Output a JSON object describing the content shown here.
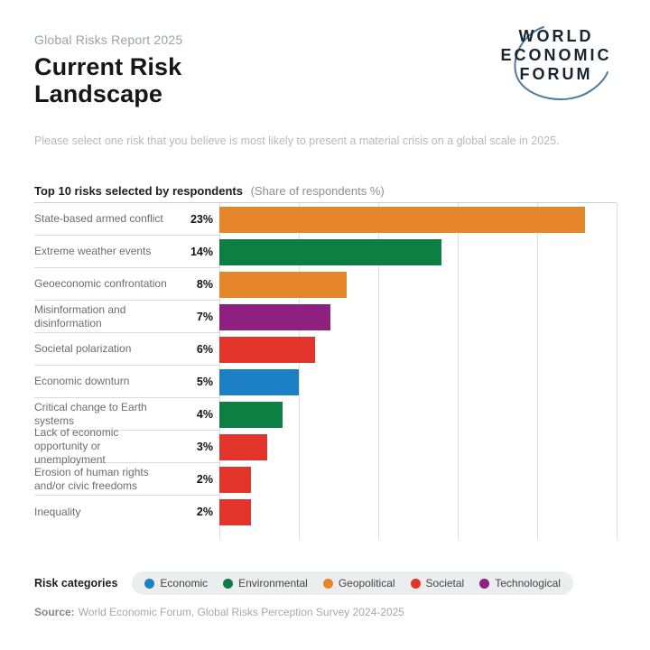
{
  "header": {
    "eyebrow": "Global Risks Report 2025",
    "title": "Current Risk Landscape",
    "logo_lines": {
      "l1": "WORLD",
      "l2": "ECONOMIC",
      "l3": "FORUM"
    }
  },
  "intro": "Please select one risk that you believe is most likely to present a material crisis on a global scale in 2025.",
  "chart_heading": {
    "bold": "Top 10 risks selected by respondents",
    "note": "(Share of respondents %)"
  },
  "chart_data": {
    "type": "bar",
    "orientation": "horizontal",
    "title": "Top 10 risks selected by respondents",
    "units": "Share of respondents %",
    "xlim": [
      0,
      25
    ],
    "gridline_step": 5,
    "grid": true,
    "categories": [
      "State-based armed conflict",
      "Extreme weather events",
      "Geoeconomic confrontation",
      "Misinformation and disinformation",
      "Societal polarization",
      "Economic downturn",
      "Critical change to Earth systems",
      "Lack of economic opportunity or unemployment",
      "Erosion of human rights and/or civic freedoms",
      "Inequality"
    ],
    "values": [
      23,
      14,
      8,
      7,
      6,
      5,
      4,
      3,
      2,
      2
    ],
    "risks": [
      {
        "label": "State-based armed conflict",
        "value": 23,
        "value_label": "23%",
        "category": "Geopolitical"
      },
      {
        "label": "Extreme weather events",
        "value": 14,
        "value_label": "14%",
        "category": "Environmental"
      },
      {
        "label": "Geoeconomic confrontation",
        "value": 8,
        "value_label": "8%",
        "category": "Geopolitical"
      },
      {
        "label": "Misinformation and disinformation",
        "value": 7,
        "value_label": "7%",
        "category": "Technological"
      },
      {
        "label": "Societal polarization",
        "value": 6,
        "value_label": "6%",
        "category": "Societal"
      },
      {
        "label": "Economic downturn",
        "value": 5,
        "value_label": "5%",
        "category": "Economic"
      },
      {
        "label": "Critical change to Earth systems",
        "value": 4,
        "value_label": "4%",
        "category": "Environmental"
      },
      {
        "label": "Lack of economic opportunity or unemployment",
        "value": 3,
        "value_label": "3%",
        "category": "Societal"
      },
      {
        "label": "Erosion of human rights and/or civic freedoms",
        "value": 2,
        "value_label": "2%",
        "category": "Societal"
      },
      {
        "label": "Inequality",
        "value": 2,
        "value_label": "2%",
        "category": "Societal"
      }
    ]
  },
  "colors": {
    "Economic": "#1E80C4",
    "Environmental": "#0D7F42",
    "Geopolitical": "#E6862B",
    "Societal": "#E2342B",
    "Technological": "#8E2180",
    "swoosh": "#3A6B96"
  },
  "legend": {
    "label": "Risk categories",
    "items": [
      {
        "name": "Economic",
        "category": "Economic"
      },
      {
        "name": "Environmental",
        "category": "Environmental"
      },
      {
        "name": "Geopolitical",
        "category": "Geopolitical"
      },
      {
        "name": "Societal",
        "category": "Societal"
      },
      {
        "name": "Technological",
        "category": "Technological"
      }
    ]
  },
  "source": {
    "prefix": "Source:",
    "text": "World Economic Forum, Global Risks Perception Survey 2024-2025"
  }
}
